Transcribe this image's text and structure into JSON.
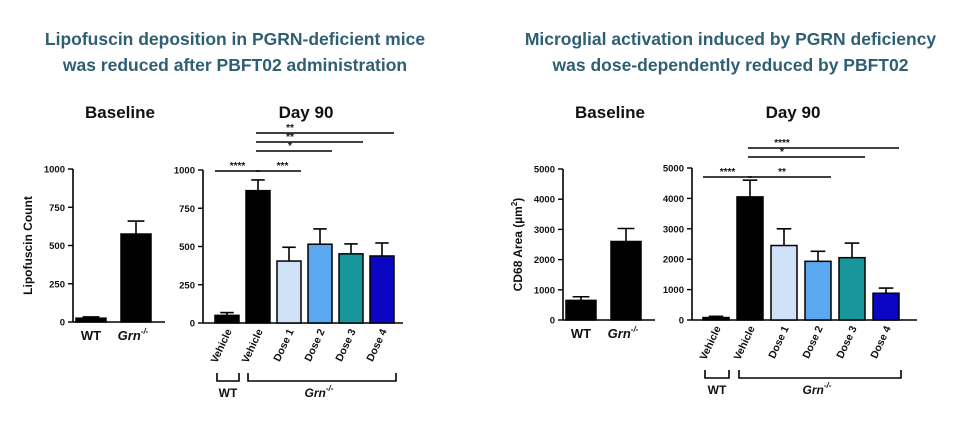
{
  "titles": {
    "left": {
      "line1": "Lipofuscin deposition in PGRN-deficient mice",
      "line2": "was reduced after PBFT02 administration"
    },
    "right": {
      "line1": "Microglial activation induced by PGRN deficiency",
      "line2": "was dose-dependently reduced by PBFT02"
    }
  },
  "colors": {
    "black": "#000000",
    "dose1": "#cfe1f7",
    "dose2": "#5aa8f0",
    "dose3": "#17979c",
    "dose4": "#0a06c4"
  },
  "chart_data": [
    {
      "type": "bar",
      "title": "Baseline",
      "ylabel": "Lipofuscin Count",
      "ylim": [
        0,
        1000
      ],
      "yticks": [
        "0",
        "250",
        "500",
        "750",
        "1000"
      ],
      "ytick_values": [
        0,
        250,
        500,
        750,
        1000
      ],
      "categories": [
        "WT",
        "Grn-/-"
      ],
      "category_labels": [
        "WT",
        "Grn"
      ],
      "category_superscripts": [
        "",
        "-/-"
      ],
      "values": [
        25,
        575
      ],
      "errors": [
        8,
        85
      ],
      "bar_colors": [
        "black",
        "black"
      ]
    },
    {
      "type": "bar",
      "title": "Day 90",
      "ylabel": "",
      "ylim": [
        0,
        1000
      ],
      "yticks": [
        "0",
        "250",
        "500",
        "750",
        "1000"
      ],
      "ytick_values": [
        0,
        250,
        500,
        750,
        1000
      ],
      "categories": [
        "Vehicle",
        "Vehicle",
        "Dose 1",
        "Dose 2",
        "Dose 3",
        "Dose 4"
      ],
      "values": [
        50,
        865,
        405,
        515,
        452,
        438
      ],
      "errors": [
        18,
        70,
        90,
        100,
        65,
        85
      ],
      "bar_colors": [
        "black",
        "black",
        "dose1",
        "dose2",
        "dose3",
        "dose4"
      ],
      "significance": [
        {
          "from": 0,
          "to": 1,
          "label": "****"
        },
        {
          "from": 1,
          "to": 2,
          "label": "***"
        },
        {
          "from": 1,
          "to": 3,
          "label": "*"
        },
        {
          "from": 1,
          "to": 4,
          "label": "**"
        },
        {
          "from": 1,
          "to": 5,
          "label": "**"
        }
      ],
      "groups": [
        {
          "label": "WT",
          "superscript": "",
          "from": 0,
          "to": 0
        },
        {
          "label": "Grn",
          "superscript": "-/-",
          "from": 1,
          "to": 5
        }
      ]
    },
    {
      "type": "bar",
      "title": "Baseline",
      "ylabel": "CD68 Area (µm²)",
      "ylabel_parts": [
        "CD68 Area (µm",
        "2",
        ")"
      ],
      "ylim": [
        0,
        5000
      ],
      "yticks": [
        "0",
        "1000",
        "2000",
        "3000",
        "4000",
        "5000"
      ],
      "ytick_values": [
        0,
        1000,
        2000,
        3000,
        4000,
        5000
      ],
      "categories": [
        "WT",
        "Grn-/-"
      ],
      "category_labels": [
        "WT",
        "Grn"
      ],
      "category_superscripts": [
        "",
        "-/-"
      ],
      "values": [
        650,
        2600
      ],
      "errors": [
        120,
        430
      ],
      "bar_colors": [
        "black",
        "black"
      ]
    },
    {
      "type": "bar",
      "title": "Day 90",
      "ylabel": "",
      "ylim": [
        0,
        5000
      ],
      "yticks": [
        "0",
        "1000",
        "2000",
        "3000",
        "4000",
        "5000"
      ],
      "ytick_values": [
        0,
        1000,
        2000,
        3000,
        4000,
        5000
      ],
      "categories": [
        "Vehicle",
        "Vehicle",
        "Dose 1",
        "Dose 2",
        "Dose 3",
        "Dose 4"
      ],
      "values": [
        80,
        4050,
        2450,
        1930,
        2050,
        880
      ],
      "errors": [
        40,
        550,
        550,
        330,
        480,
        170
      ],
      "bar_colors": [
        "black",
        "black",
        "dose1",
        "dose2",
        "dose3",
        "dose4"
      ],
      "significance": [
        {
          "from": 0,
          "to": 1,
          "label": "****"
        },
        {
          "from": 1,
          "to": 3,
          "label": "**"
        },
        {
          "from": 1,
          "to": 4,
          "label": "*"
        },
        {
          "from": 1,
          "to": 5,
          "label": "****"
        }
      ],
      "groups": [
        {
          "label": "WT",
          "superscript": "",
          "from": 0,
          "to": 0
        },
        {
          "label": "Grn",
          "superscript": "-/-",
          "from": 1,
          "to": 5
        }
      ]
    }
  ]
}
